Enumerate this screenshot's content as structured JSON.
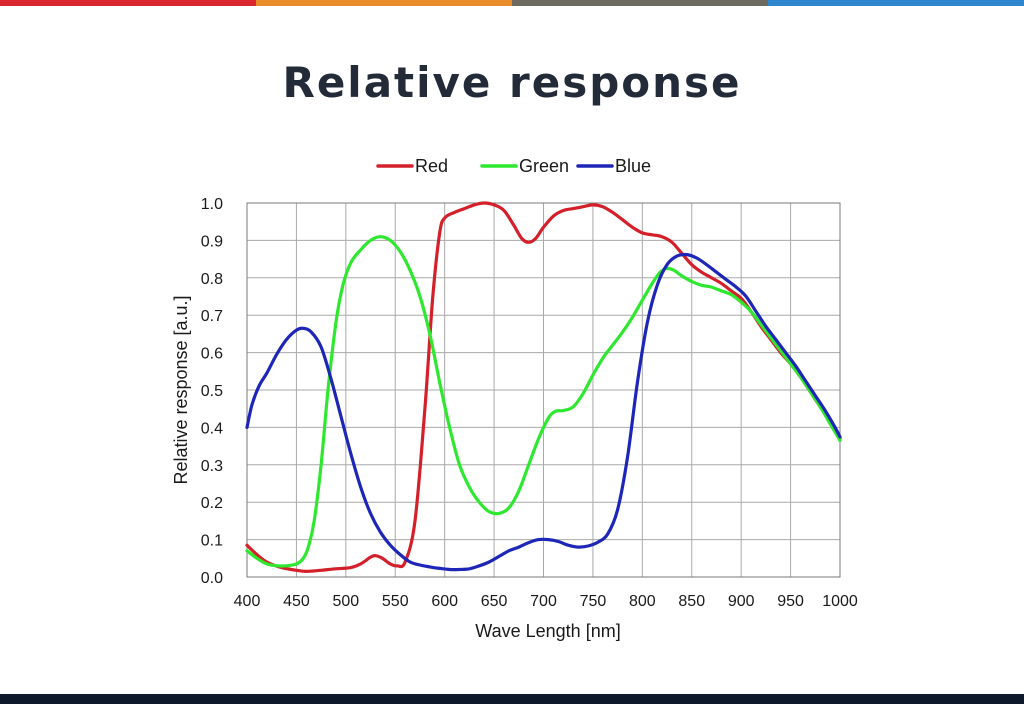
{
  "slide": {
    "title": "Relative response",
    "stripe_colors": [
      "#d9262f",
      "#ea8c2a",
      "#6d6a5f",
      "#2e86cf"
    ],
    "bottom_bar_color": "#0e1a2b"
  },
  "chart_data": {
    "type": "line",
    "title": "",
    "xlabel": "Wave Length [nm]",
    "ylabel": "Relative response [a.u.]",
    "xlim": [
      400,
      1000
    ],
    "ylim": [
      0,
      1.0
    ],
    "xticks": [
      400,
      450,
      500,
      550,
      600,
      650,
      700,
      750,
      800,
      850,
      900,
      950,
      1000
    ],
    "yticks": [
      0.0,
      0.1,
      0.2,
      0.3,
      0.4,
      0.5,
      0.6,
      0.7,
      0.8,
      0.9,
      1.0
    ],
    "xtick_labels": [
      "400",
      "450",
      "500",
      "550",
      "600",
      "650",
      "700",
      "750",
      "800",
      "850",
      "900",
      "950",
      "1000"
    ],
    "ytick_labels": [
      "0.0",
      "0.1",
      "0.2",
      "0.3",
      "0.4",
      "0.5",
      "0.6",
      "0.7",
      "0.8",
      "0.9",
      "1.0"
    ],
    "grid": true,
    "legend_position": "top-center",
    "series": [
      {
        "name": "Red",
        "color": "#d4202a",
        "points": [
          [
            400,
            0.085
          ],
          [
            410,
            0.06
          ],
          [
            420,
            0.04
          ],
          [
            435,
            0.025
          ],
          [
            450,
            0.018
          ],
          [
            460,
            0.015
          ],
          [
            475,
            0.018
          ],
          [
            490,
            0.022
          ],
          [
            505,
            0.025
          ],
          [
            515,
            0.035
          ],
          [
            525,
            0.053
          ],
          [
            530,
            0.057
          ],
          [
            537,
            0.05
          ],
          [
            545,
            0.035
          ],
          [
            552,
            0.03
          ],
          [
            560,
            0.04
          ],
          [
            570,
            0.15
          ],
          [
            580,
            0.45
          ],
          [
            588,
            0.75
          ],
          [
            595,
            0.92
          ],
          [
            600,
            0.96
          ],
          [
            610,
            0.975
          ],
          [
            620,
            0.985
          ],
          [
            630,
            0.995
          ],
          [
            640,
            1.0
          ],
          [
            650,
            0.995
          ],
          [
            660,
            0.98
          ],
          [
            670,
            0.94
          ],
          [
            678,
            0.905
          ],
          [
            685,
            0.895
          ],
          [
            692,
            0.905
          ],
          [
            700,
            0.935
          ],
          [
            710,
            0.965
          ],
          [
            720,
            0.98
          ],
          [
            730,
            0.985
          ],
          [
            740,
            0.99
          ],
          [
            750,
            0.995
          ],
          [
            760,
            0.99
          ],
          [
            770,
            0.975
          ],
          [
            780,
            0.955
          ],
          [
            790,
            0.935
          ],
          [
            800,
            0.92
          ],
          [
            810,
            0.915
          ],
          [
            820,
            0.91
          ],
          [
            830,
            0.895
          ],
          [
            840,
            0.865
          ],
          [
            850,
            0.835
          ],
          [
            860,
            0.815
          ],
          [
            870,
            0.8
          ],
          [
            880,
            0.785
          ],
          [
            890,
            0.765
          ],
          [
            900,
            0.745
          ],
          [
            910,
            0.71
          ],
          [
            920,
            0.67
          ],
          [
            930,
            0.635
          ],
          [
            940,
            0.6
          ],
          [
            950,
            0.57
          ],
          [
            960,
            0.535
          ],
          [
            970,
            0.495
          ],
          [
            980,
            0.455
          ],
          [
            990,
            0.415
          ],
          [
            1000,
            0.37
          ]
        ]
      },
      {
        "name": "Green",
        "color": "#2ee830",
        "points": [
          [
            400,
            0.07
          ],
          [
            410,
            0.05
          ],
          [
            420,
            0.035
          ],
          [
            430,
            0.03
          ],
          [
            440,
            0.03
          ],
          [
            450,
            0.035
          ],
          [
            457,
            0.05
          ],
          [
            462,
            0.08
          ],
          [
            468,
            0.15
          ],
          [
            475,
            0.3
          ],
          [
            482,
            0.5
          ],
          [
            490,
            0.68
          ],
          [
            497,
            0.78
          ],
          [
            505,
            0.84
          ],
          [
            515,
            0.875
          ],
          [
            525,
            0.9
          ],
          [
            535,
            0.91
          ],
          [
            545,
            0.9
          ],
          [
            555,
            0.87
          ],
          [
            565,
            0.82
          ],
          [
            575,
            0.75
          ],
          [
            585,
            0.65
          ],
          [
            595,
            0.52
          ],
          [
            605,
            0.4
          ],
          [
            615,
            0.3
          ],
          [
            625,
            0.24
          ],
          [
            635,
            0.2
          ],
          [
            645,
            0.175
          ],
          [
            655,
            0.17
          ],
          [
            665,
            0.185
          ],
          [
            675,
            0.23
          ],
          [
            685,
            0.3
          ],
          [
            695,
            0.37
          ],
          [
            705,
            0.425
          ],
          [
            712,
            0.443
          ],
          [
            720,
            0.445
          ],
          [
            730,
            0.455
          ],
          [
            740,
            0.49
          ],
          [
            750,
            0.54
          ],
          [
            760,
            0.585
          ],
          [
            770,
            0.62
          ],
          [
            780,
            0.655
          ],
          [
            790,
            0.695
          ],
          [
            800,
            0.74
          ],
          [
            810,
            0.785
          ],
          [
            818,
            0.815
          ],
          [
            825,
            0.825
          ],
          [
            832,
            0.82
          ],
          [
            840,
            0.805
          ],
          [
            850,
            0.79
          ],
          [
            860,
            0.78
          ],
          [
            870,
            0.775
          ],
          [
            880,
            0.765
          ],
          [
            890,
            0.755
          ],
          [
            900,
            0.735
          ],
          [
            910,
            0.71
          ],
          [
            920,
            0.675
          ],
          [
            930,
            0.64
          ],
          [
            940,
            0.605
          ],
          [
            950,
            0.57
          ],
          [
            960,
            0.535
          ],
          [
            970,
            0.495
          ],
          [
            980,
            0.455
          ],
          [
            990,
            0.41
          ],
          [
            1000,
            0.365
          ]
        ]
      },
      {
        "name": "Blue",
        "color": "#1e26b8",
        "points": [
          [
            400,
            0.4
          ],
          [
            405,
            0.46
          ],
          [
            412,
            0.51
          ],
          [
            420,
            0.545
          ],
          [
            430,
            0.595
          ],
          [
            440,
            0.635
          ],
          [
            450,
            0.66
          ],
          [
            457,
            0.665
          ],
          [
            465,
            0.655
          ],
          [
            475,
            0.615
          ],
          [
            485,
            0.53
          ],
          [
            495,
            0.43
          ],
          [
            505,
            0.33
          ],
          [
            515,
            0.24
          ],
          [
            525,
            0.17
          ],
          [
            535,
            0.12
          ],
          [
            545,
            0.085
          ],
          [
            555,
            0.06
          ],
          [
            565,
            0.04
          ],
          [
            575,
            0.032
          ],
          [
            585,
            0.027
          ],
          [
            595,
            0.023
          ],
          [
            605,
            0.02
          ],
          [
            615,
            0.02
          ],
          [
            625,
            0.022
          ],
          [
            635,
            0.03
          ],
          [
            645,
            0.04
          ],
          [
            655,
            0.055
          ],
          [
            665,
            0.07
          ],
          [
            675,
            0.08
          ],
          [
            685,
            0.092
          ],
          [
            695,
            0.1
          ],
          [
            705,
            0.1
          ],
          [
            715,
            0.095
          ],
          [
            725,
            0.085
          ],
          [
            735,
            0.08
          ],
          [
            745,
            0.083
          ],
          [
            755,
            0.093
          ],
          [
            765,
            0.115
          ],
          [
            775,
            0.18
          ],
          [
            785,
            0.32
          ],
          [
            795,
            0.52
          ],
          [
            805,
            0.68
          ],
          [
            815,
            0.78
          ],
          [
            825,
            0.835
          ],
          [
            835,
            0.858
          ],
          [
            845,
            0.862
          ],
          [
            855,
            0.853
          ],
          [
            865,
            0.835
          ],
          [
            875,
            0.815
          ],
          [
            885,
            0.795
          ],
          [
            895,
            0.775
          ],
          [
            905,
            0.75
          ],
          [
            915,
            0.71
          ],
          [
            925,
            0.67
          ],
          [
            935,
            0.635
          ],
          [
            945,
            0.6
          ],
          [
            955,
            0.565
          ],
          [
            965,
            0.525
          ],
          [
            975,
            0.485
          ],
          [
            985,
            0.445
          ],
          [
            995,
            0.4
          ],
          [
            1000,
            0.375
          ]
        ]
      }
    ]
  }
}
